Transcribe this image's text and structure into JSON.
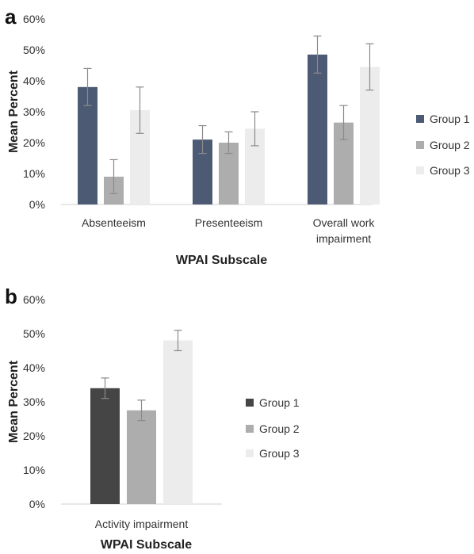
{
  "chart_data": [
    {
      "type": "bar",
      "panel_label": "a",
      "categories": [
        [
          "Absenteeism"
        ],
        [
          "Presenteeism"
        ],
        [
          "Overall work",
          "impairment"
        ]
      ],
      "series": [
        {
          "name": "Group 1",
          "color": "#4c5a74",
          "values": [
            38,
            21,
            48.5
          ],
          "errors": [
            6,
            4.5,
            6
          ]
        },
        {
          "name": "Group 2",
          "color": "#adadad",
          "values": [
            9,
            20,
            26.5
          ],
          "errors": [
            5.5,
            3.5,
            5.5
          ]
        },
        {
          "name": "Group 3",
          "color": "#ececec",
          "values": [
            30.5,
            24.5,
            44.5
          ],
          "errors": [
            7.5,
            5.5,
            7.5
          ]
        }
      ],
      "xlabel": "WPAI Subscale",
      "ylabel": "Mean Percent",
      "ylim": [
        0,
        60
      ],
      "yticks": [
        "0%",
        "10%",
        "20%",
        "30%",
        "40%",
        "50%",
        "60%"
      ],
      "grid": false,
      "legend": "right"
    },
    {
      "type": "bar",
      "panel_label": "b",
      "categories": [
        [
          "Activity impairment"
        ]
      ],
      "series": [
        {
          "name": "Group 1",
          "color": "#454545",
          "values": [
            34
          ],
          "errors": [
            3
          ]
        },
        {
          "name": "Group 2",
          "color": "#adadad",
          "values": [
            27.5
          ],
          "errors": [
            3
          ]
        },
        {
          "name": "Group 3",
          "color": "#ececec",
          "values": [
            48
          ],
          "errors": [
            3
          ]
        }
      ],
      "xlabel": "WPAI Subscale",
      "ylabel": "Mean Percent",
      "ylim": [
        0,
        60
      ],
      "yticks": [
        "0%",
        "10%",
        "20%",
        "30%",
        "40%",
        "50%",
        "60%"
      ],
      "grid": false,
      "legend": "right"
    }
  ]
}
